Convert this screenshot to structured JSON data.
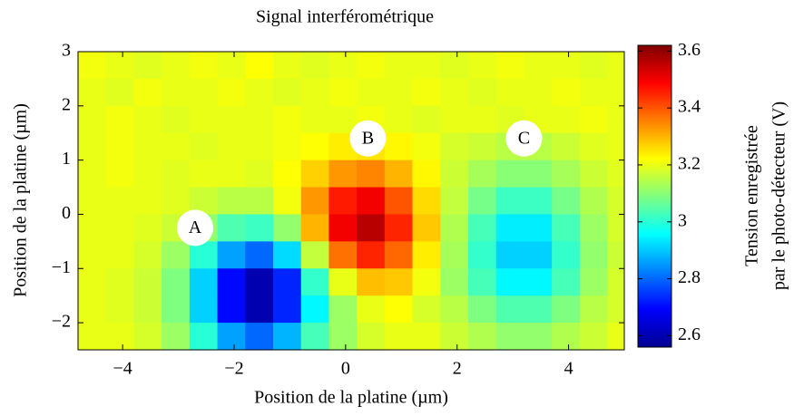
{
  "chart_data": {
    "type": "heatmap",
    "title": "Signal interférométrique",
    "xlabel": "Position de la platine (µm)",
    "ylabel": "Position de la platine (µm)",
    "colorbar_label": [
      "Tension enregistrée",
      "par le photo-détecteur (V)"
    ],
    "colormap": "jet",
    "clim": [
      2.56,
      3.62
    ],
    "cticks": [
      2.6,
      2.8,
      3,
      3.2,
      3.4,
      3.6
    ],
    "xlim": [
      -4.8,
      5.0
    ],
    "ylim": [
      -2.5,
      3
    ],
    "xticks": [
      {
        "value": -4,
        "label": "−4"
      },
      {
        "value": -2,
        "label": "−2"
      },
      0,
      2,
      4
    ],
    "yticks": [
      {
        "value": -2,
        "label": "−2"
      },
      {
        "value": -1,
        "label": "−1"
      },
      0,
      1,
      2,
      3
    ],
    "x": [
      -4.55,
      -4.05,
      -3.55,
      -3.05,
      -2.55,
      -2.05,
      -1.55,
      -1.05,
      -0.55,
      -0.05,
      0.45,
      0.95,
      1.45,
      1.95,
      2.45,
      2.95,
      3.45,
      3.95,
      4.45,
      4.95
    ],
    "y": [
      2.75,
      2.25,
      1.75,
      1.25,
      0.75,
      0.25,
      -0.25,
      -0.75,
      -1.25,
      -1.75,
      -2.25
    ],
    "z": [
      [
        3.21,
        3.2,
        3.19,
        3.2,
        3.21,
        3.2,
        3.22,
        3.2,
        3.19,
        3.2,
        3.21,
        3.2,
        3.2,
        3.19,
        3.2,
        3.21,
        3.2,
        3.2,
        3.19,
        3.2
      ],
      [
        3.2,
        3.19,
        3.21,
        3.2,
        3.2,
        3.21,
        3.2,
        3.19,
        3.2,
        3.21,
        3.2,
        3.2,
        3.21,
        3.2,
        3.19,
        3.2,
        3.2,
        3.21,
        3.2,
        3.2
      ],
      [
        3.2,
        3.21,
        3.2,
        3.19,
        3.2,
        3.2,
        3.2,
        3.21,
        3.2,
        3.2,
        3.21,
        3.2,
        3.19,
        3.2,
        3.2,
        3.19,
        3.2,
        3.2,
        3.21,
        3.2
      ],
      [
        3.2,
        3.21,
        3.2,
        3.2,
        3.19,
        3.2,
        3.2,
        3.21,
        3.22,
        3.24,
        3.25,
        3.23,
        3.21,
        3.18,
        3.17,
        3.15,
        3.15,
        3.17,
        3.19,
        3.2
      ],
      [
        3.2,
        3.21,
        3.2,
        3.19,
        3.2,
        3.2,
        3.19,
        3.22,
        3.27,
        3.33,
        3.35,
        3.3,
        3.23,
        3.17,
        3.13,
        3.1,
        3.1,
        3.13,
        3.17,
        3.19
      ],
      [
        3.2,
        3.2,
        3.2,
        3.19,
        3.17,
        3.15,
        3.15,
        3.21,
        3.33,
        3.46,
        3.5,
        3.4,
        3.26,
        3.16,
        3.08,
        3.02,
        3.02,
        3.08,
        3.14,
        3.18
      ],
      [
        3.2,
        3.2,
        3.19,
        3.17,
        3.11,
        3.04,
        3.02,
        3.11,
        3.3,
        3.5,
        3.56,
        3.45,
        3.28,
        3.14,
        3.03,
        2.94,
        2.94,
        3.03,
        3.12,
        3.18
      ],
      [
        3.2,
        3.2,
        3.18,
        3.12,
        3.0,
        2.86,
        2.8,
        2.92,
        3.16,
        3.37,
        3.45,
        3.38,
        3.24,
        3.13,
        3.01,
        2.91,
        2.91,
        3.01,
        3.11,
        3.17
      ],
      [
        3.2,
        3.19,
        3.17,
        3.09,
        2.91,
        2.7,
        2.61,
        2.73,
        3.01,
        3.2,
        3.29,
        3.28,
        3.21,
        3.12,
        3.03,
        2.95,
        2.95,
        3.03,
        3.12,
        3.18
      ],
      [
        3.2,
        3.19,
        3.17,
        3.09,
        2.91,
        2.7,
        2.61,
        2.73,
        2.95,
        3.12,
        3.2,
        3.22,
        3.18,
        3.15,
        3.09,
        3.04,
        3.04,
        3.09,
        3.15,
        3.18
      ],
      [
        3.2,
        3.2,
        3.18,
        3.12,
        3.0,
        2.86,
        2.8,
        2.88,
        3.03,
        3.12,
        3.18,
        3.2,
        3.2,
        3.17,
        3.14,
        3.11,
        3.11,
        3.14,
        3.17,
        3.2
      ]
    ],
    "annotations": [
      {
        "text": "A",
        "x": -2.7,
        "y": -0.25
      },
      {
        "text": "B",
        "x": 0.4,
        "y": 1.4
      },
      {
        "text": "C",
        "x": 3.2,
        "y": 1.4
      }
    ]
  }
}
